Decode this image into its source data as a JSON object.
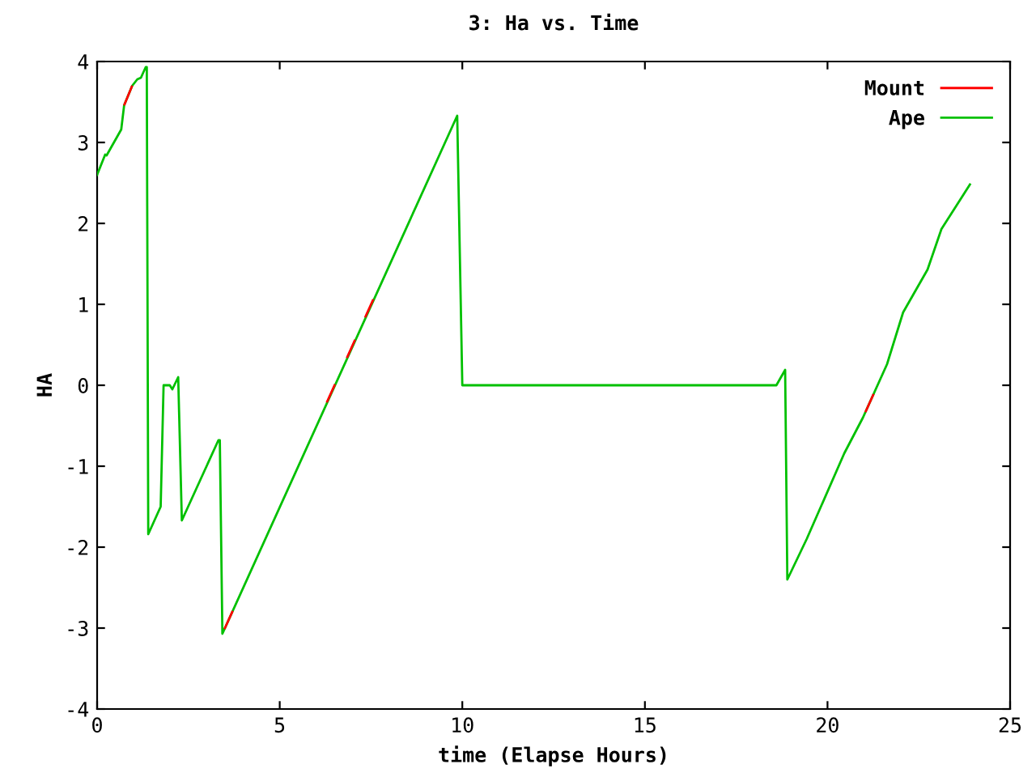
{
  "chart_data": {
    "type": "line",
    "title": "3: Ha vs. Time",
    "xlabel": "time (Elapse Hours)",
    "ylabel": "HA",
    "xlim": [
      0,
      25
    ],
    "ylim": [
      -4,
      4
    ],
    "xticks": [
      0,
      5,
      10,
      15,
      20,
      25
    ],
    "yticks": [
      -4,
      -3,
      -2,
      -1,
      0,
      1,
      2,
      3,
      4
    ],
    "grid": false,
    "legend": "top right",
    "series": [
      {
        "name": "Mount",
        "color": "#ff0000",
        "x": [
          0.75,
          0.95
        ],
        "values": [
          3.47,
          3.69
        ]
      },
      {
        "color": "#ff0000",
        "x": [
          3.5,
          3.7
        ],
        "values": [
          -3.0,
          -2.8
        ]
      },
      {
        "color": "#ff0000",
        "x": [
          6.3,
          6.5
        ],
        "values": [
          -0.2,
          0.0
        ]
      },
      {
        "color": "#ff0000",
        "x": [
          6.85,
          7.05
        ],
        "values": [
          0.35,
          0.55
        ]
      },
      {
        "color": "#ff0000",
        "x": [
          7.35,
          7.55
        ],
        "values": [
          0.85,
          1.05
        ]
      },
      {
        "color": "#ff0000",
        "x": [
          21.05,
          21.25
        ],
        "values": [
          -0.32,
          -0.12
        ]
      },
      {
        "name": "Ape",
        "color": "#00c000",
        "x": [
          0,
          0.22,
          0.26,
          0.66,
          0.74,
          0.96,
          1.1,
          1.2,
          1.33,
          1.36,
          1.4,
          1.74,
          1.82,
          1.99,
          2.06,
          2.22,
          2.32,
          3.32,
          3.36,
          3.43,
          9.86,
          10.0,
          18.6,
          18.84,
          18.9,
          19.43,
          20.46,
          20.97,
          21.63,
          22.07,
          22.74,
          23.12,
          23.9
        ],
        "values": [
          2.6,
          2.85,
          2.84,
          3.16,
          3.46,
          3.7,
          3.78,
          3.8,
          3.93,
          3.93,
          -1.84,
          -1.5,
          0,
          0,
          -0.05,
          0.1,
          -1.67,
          -0.68,
          -0.68,
          -3.07,
          3.33,
          0,
          0,
          0.19,
          -2.4,
          -1.9,
          -0.84,
          -0.4,
          0.26,
          0.9,
          1.43,
          1.93,
          2.48
        ]
      }
    ]
  }
}
